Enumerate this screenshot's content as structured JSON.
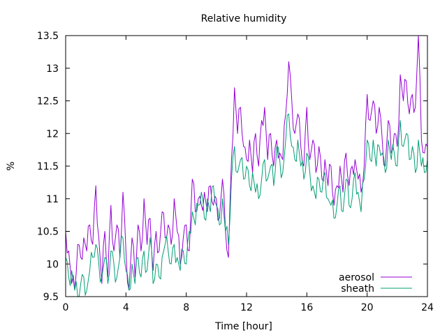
{
  "chart_data": {
    "type": "line",
    "title": "Relative humidity",
    "xlabel": "Time [hour]",
    "ylabel": "%",
    "xlim": [
      0,
      24
    ],
    "ylim": [
      9.5,
      13.5
    ],
    "xticks": [
      0,
      4,
      8,
      12,
      16,
      20,
      24
    ],
    "yticks": [
      9.5,
      10,
      10.5,
      11,
      11.5,
      12,
      12.5,
      13,
      13.5
    ],
    "grid": false,
    "legend_position": "bottom-right",
    "series": [
      {
        "name": "aerosol",
        "color": "#9400d3",
        "x": [
          0,
          0.2,
          0.4,
          0.6,
          0.8,
          1.0,
          1.2,
          1.4,
          1.6,
          1.8,
          2.0,
          2.2,
          2.4,
          2.6,
          2.8,
          3.0,
          3.2,
          3.4,
          3.6,
          3.8,
          4.0,
          4.2,
          4.4,
          4.6,
          4.8,
          5.0,
          5.2,
          5.4,
          5.6,
          5.8,
          6.0,
          6.2,
          6.4,
          6.6,
          6.8,
          7.0,
          7.2,
          7.4,
          7.6,
          7.8,
          8.0,
          8.2,
          8.4,
          8.6,
          8.8,
          9.0,
          9.2,
          9.4,
          9.6,
          9.8,
          10.0,
          10.2,
          10.4,
          10.6,
          10.8,
          11.0,
          11.2,
          11.4,
          11.6,
          11.8,
          12.0,
          12.2,
          12.4,
          12.6,
          12.8,
          13.0,
          13.2,
          13.4,
          13.6,
          13.8,
          14.0,
          14.2,
          14.4,
          14.6,
          14.8,
          15.0,
          15.2,
          15.4,
          15.6,
          15.8,
          16.0,
          16.2,
          16.4,
          16.6,
          16.8,
          17.0,
          17.2,
          17.4,
          17.6,
          17.8,
          18.0,
          18.2,
          18.4,
          18.6,
          18.8,
          19.0,
          19.2,
          19.4,
          19.6,
          19.8,
          20.0,
          20.2,
          20.4,
          20.6,
          20.8,
          21.0,
          21.2,
          21.4,
          21.6,
          21.8,
          22.0,
          22.2,
          22.4,
          22.6,
          22.8,
          23.0,
          23.2,
          23.4,
          23.6,
          23.8,
          24.0
        ],
        "y": [
          10.5,
          10.2,
          9.7,
          9.6,
          10.3,
          10.1,
          10.4,
          10.2,
          10.6,
          10.3,
          11.2,
          10.4,
          9.7,
          10.5,
          9.8,
          10.9,
          10.2,
          10.6,
          10.1,
          11.1,
          10.2,
          9.6,
          10.4,
          9.8,
          10.6,
          10.2,
          11.0,
          10.3,
          10.7,
          9.9,
          10.5,
          10.2,
          10.8,
          10.4,
          10.6,
          10.3,
          11.0,
          10.5,
          10.0,
          10.4,
          10.6,
          10.2,
          11.3,
          10.8,
          11.0,
          10.9,
          11.1,
          10.8,
          11.2,
          10.9,
          11.0,
          10.7,
          11.3,
          10.5,
          10.1,
          11.6,
          12.7,
          12.0,
          12.4,
          11.8,
          11.6,
          11.9,
          11.4,
          12.0,
          11.5,
          12.2,
          12.4,
          11.6,
          12.0,
          11.5,
          11.9,
          11.7,
          11.6,
          12.3,
          13.1,
          12.5,
          12.0,
          12.3,
          11.8,
          11.5,
          12.4,
          11.6,
          11.9,
          11.4,
          11.8,
          11.3,
          11.6,
          11.2,
          11.5,
          10.9,
          11.2,
          11.5,
          11.1,
          11.7,
          11.2,
          11.5,
          11.6,
          11.3,
          11.1,
          11.5,
          12.6,
          12.2,
          12.5,
          12.0,
          12.4,
          11.9,
          11.5,
          12.2,
          11.7,
          12.0,
          11.8,
          12.9,
          12.5,
          12.8,
          12.3,
          12.6,
          12.4,
          13.5,
          11.9,
          11.7,
          11.8
        ]
      },
      {
        "name": "sheath",
        "color": "#009e73",
        "x": [
          0,
          0.2,
          0.4,
          0.6,
          0.8,
          1.0,
          1.2,
          1.4,
          1.6,
          1.8,
          2.0,
          2.2,
          2.4,
          2.6,
          2.8,
          3.0,
          3.2,
          3.4,
          3.6,
          3.8,
          4.0,
          4.2,
          4.4,
          4.6,
          4.8,
          5.0,
          5.2,
          5.4,
          5.6,
          5.8,
          6.0,
          6.2,
          6.4,
          6.6,
          6.8,
          7.0,
          7.2,
          7.4,
          7.6,
          7.8,
          8.0,
          8.2,
          8.4,
          8.6,
          8.8,
          9.0,
          9.2,
          9.4,
          9.6,
          9.8,
          10.0,
          10.2,
          10.4,
          10.6,
          10.8,
          11.0,
          11.2,
          11.4,
          11.6,
          11.8,
          12.0,
          12.2,
          12.4,
          12.6,
          12.8,
          13.0,
          13.2,
          13.4,
          13.6,
          13.8,
          14.0,
          14.2,
          14.4,
          14.6,
          14.8,
          15.0,
          15.2,
          15.4,
          15.6,
          15.8,
          16.0,
          16.2,
          16.4,
          16.6,
          16.8,
          17.0,
          17.2,
          17.4,
          17.6,
          17.8,
          18.0,
          18.2,
          18.4,
          18.6,
          18.8,
          19.0,
          19.2,
          19.4,
          19.6,
          19.8,
          20.0,
          20.2,
          20.4,
          20.6,
          20.8,
          21.0,
          21.2,
          21.4,
          21.6,
          21.8,
          22.0,
          22.2,
          22.4,
          22.6,
          22.8,
          23.0,
          23.2,
          23.4,
          23.6,
          23.8,
          24.0
        ],
        "y": [
          10.1,
          9.8,
          9.9,
          9.6,
          9.5,
          9.7,
          9.8,
          9.6,
          9.9,
          10.1,
          10.3,
          10.0,
          9.8,
          10.1,
          9.7,
          10.2,
          10.0,
          9.8,
          10.1,
          10.4,
          9.9,
          9.6,
          10.0,
          9.7,
          10.1,
          9.8,
          10.2,
          9.9,
          10.4,
          9.7,
          10.0,
          9.8,
          10.1,
          10.3,
          10.2,
          10.0,
          10.3,
          10.1,
          9.9,
          10.2,
          10.0,
          10.5,
          10.8,
          10.6,
          10.9,
          11.1,
          10.7,
          11.0,
          10.8,
          11.2,
          10.9,
          10.6,
          11.0,
          10.5,
          10.3,
          11.3,
          11.8,
          11.4,
          11.6,
          11.3,
          11.5,
          11.2,
          11.4,
          11.1,
          11.0,
          11.3,
          11.6,
          11.3,
          11.5,
          11.2,
          11.8,
          11.6,
          11.4,
          11.9,
          12.3,
          11.8,
          11.6,
          11.9,
          11.5,
          11.3,
          11.7,
          11.4,
          11.2,
          11.0,
          11.3,
          11.1,
          11.4,
          11.0,
          10.9,
          10.7,
          10.9,
          11.2,
          10.8,
          11.3,
          10.9,
          11.0,
          11.4,
          11.1,
          10.8,
          11.3,
          11.9,
          11.6,
          11.9,
          11.5,
          11.8,
          11.7,
          11.4,
          11.9,
          11.6,
          11.7,
          11.5,
          12.2,
          11.8,
          12.0,
          11.6,
          11.8,
          11.4,
          11.9,
          11.5,
          11.4,
          11.6
        ]
      }
    ]
  }
}
